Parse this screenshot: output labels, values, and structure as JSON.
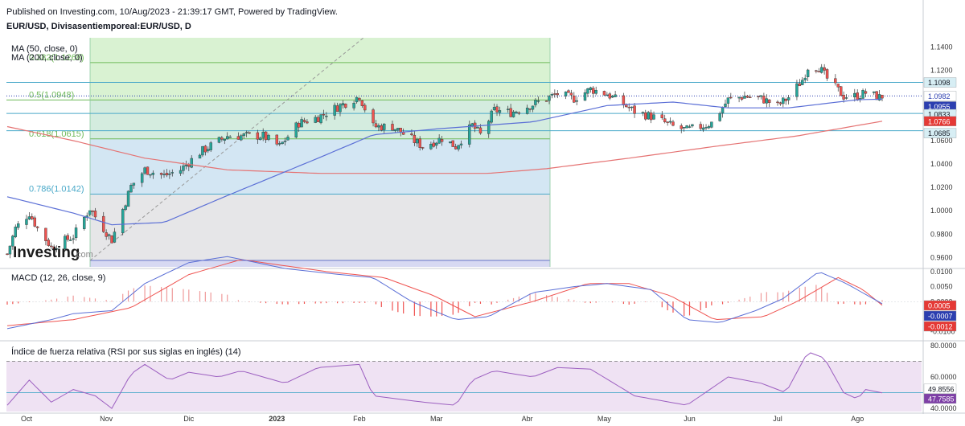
{
  "header": {
    "published": "Published on Investing.com, 10/Aug/2023 - 21:39:17 GMT, Powered by TradingView.",
    "symbol": "EUR/USD, Divisasentiemporeal:EUR/USD, D",
    "ma50_label": "MA (50, close, 0)",
    "ma200_label": "MA (200, close, 0)",
    "watermark": "Investing.com"
  },
  "colors": {
    "up": "#26a69a",
    "down": "#ef5350",
    "ma50": "#5b6fd6",
    "ma200": "#e57373",
    "macd": "#5b6fd6",
    "signal": "#ef5350",
    "rsi": "#9c5fc0",
    "fib_blue": "#4aa9c9",
    "fib_green": "#6fba5a"
  },
  "chart_data": [
    {
      "type": "candlestick",
      "title": "EUR/USD, Divisasentiemporeal:EUR/USD, D",
      "ylim": [
        0.952,
        1.148
      ],
      "yticks": [
        "1.1400",
        "1.1200",
        "1.1000",
        "1.0800",
        "1.0600",
        "1.0400",
        "1.0200",
        "1.0000",
        "0.9800",
        "0.9600"
      ],
      "xticks": [
        "Oct",
        "Nov",
        "Dic",
        "2023",
        "Feb",
        "Mar",
        "Abr",
        "May",
        "Jun",
        "Jul",
        "Ago"
      ],
      "price_anchors": [
        [
          "2022-09-26",
          0.963
        ],
        [
          "2022-09-29",
          0.985
        ],
        [
          "2022-10-04",
          0.998
        ],
        [
          "2022-10-07",
          0.985
        ],
        [
          "2022-10-12",
          0.969
        ],
        [
          "2022-10-20",
          0.978
        ],
        [
          "2022-10-26",
          1.002
        ],
        [
          "2022-10-28",
          0.995
        ],
        [
          "2022-11-03",
          0.975
        ],
        [
          "2022-11-10",
          1.021
        ],
        [
          "2022-11-15",
          1.035
        ],
        [
          "2022-11-22",
          1.03
        ],
        [
          "2022-11-28",
          1.035
        ],
        [
          "2022-12-05",
          1.05
        ],
        [
          "2022-12-15",
          1.064
        ],
        [
          "2022-12-28",
          1.064
        ],
        [
          "2023-01-03",
          1.055
        ],
        [
          "2023-01-10",
          1.075
        ],
        [
          "2023-01-17",
          1.08
        ],
        [
          "2023-01-25",
          1.09
        ],
        [
          "2023-02-01",
          1.098
        ],
        [
          "2023-02-06",
          1.072
        ],
        [
          "2023-02-13",
          1.072
        ],
        [
          "2023-02-24",
          1.055
        ],
        [
          "2023-03-03",
          1.062
        ],
        [
          "2023-03-08",
          1.055
        ],
        [
          "2023-03-14",
          1.073
        ],
        [
          "2023-03-17",
          1.065
        ],
        [
          "2023-03-22",
          1.086
        ],
        [
          "2023-03-28",
          1.084
        ],
        [
          "2023-04-05",
          1.091
        ],
        [
          "2023-04-14",
          1.1
        ],
        [
          "2023-04-20",
          1.096
        ],
        [
          "2023-04-26",
          1.104
        ],
        [
          "2023-05-02",
          1.1
        ],
        [
          "2023-05-12",
          1.085
        ],
        [
          "2023-05-19",
          1.08
        ],
        [
          "2023-05-26",
          1.072
        ],
        [
          "2023-05-31",
          1.069
        ],
        [
          "2023-06-05",
          1.072
        ],
        [
          "2023-06-09",
          1.075
        ],
        [
          "2023-06-15",
          1.095
        ],
        [
          "2023-06-21",
          1.098
        ],
        [
          "2023-06-27",
          1.096
        ],
        [
          "2023-07-03",
          1.09
        ],
        [
          "2023-07-07",
          1.097
        ],
        [
          "2023-07-12",
          1.112
        ],
        [
          "2023-07-14",
          1.123
        ],
        [
          "2023-07-18",
          1.123
        ],
        [
          "2023-07-21",
          1.113
        ],
        [
          "2023-07-27",
          1.098
        ],
        [
          "2023-08-01",
          1.098
        ],
        [
          "2023-08-04",
          1.101
        ],
        [
          "2023-08-09",
          1.097
        ],
        [
          "2023-08-10",
          1.098
        ]
      ],
      "ma50_anchors": [
        [
          "2022-09-26",
          1.012
        ],
        [
          "2022-10-20",
          0.998
        ],
        [
          "2022-11-03",
          0.988
        ],
        [
          "2022-11-22",
          0.99
        ],
        [
          "2022-12-15",
          1.013
        ],
        [
          "2023-01-17",
          1.045
        ],
        [
          "2023-02-06",
          1.065
        ],
        [
          "2023-03-01",
          1.07
        ],
        [
          "2023-04-05",
          1.076
        ],
        [
          "2023-05-02",
          1.09
        ],
        [
          "2023-05-26",
          1.093
        ],
        [
          "2023-06-15",
          1.088
        ],
        [
          "2023-07-07",
          1.088
        ],
        [
          "2023-08-01",
          1.095
        ],
        [
          "2023-08-10",
          1.0955
        ]
      ],
      "ma200_anchors": [
        [
          "2022-09-26",
          1.072
        ],
        [
          "2022-10-20",
          1.06
        ],
        [
          "2022-11-15",
          1.045
        ],
        [
          "2022-12-15",
          1.035
        ],
        [
          "2023-01-17",
          1.032
        ],
        [
          "2023-02-20",
          1.032
        ],
        [
          "2023-03-20",
          1.032
        ],
        [
          "2023-04-10",
          1.036
        ],
        [
          "2023-05-10",
          1.045
        ],
        [
          "2023-06-10",
          1.055
        ],
        [
          "2023-07-10",
          1.064
        ],
        [
          "2023-08-10",
          1.0766
        ]
      ],
      "fibonacci": [
        {
          "label": "0.382(1.1268)",
          "value": 1.1268,
          "color": "#6fba5a"
        },
        {
          "label": "0.5(1.0948)",
          "value": 1.0948,
          "color": "#6fba5a"
        },
        {
          "label": "0.618(1.0615)",
          "value": 1.0615,
          "color": "#6fba5a"
        },
        {
          "label": "0.786(1.0142)",
          "value": 1.0142,
          "color": "#4aa9c9"
        },
        {
          "label": "",
          "value": 0.9575,
          "color": "#6674c9"
        }
      ],
      "horizontal_lines": [
        1.1098,
        1.0833,
        1.0685
      ],
      "price_tags": [
        {
          "text": "1.1098",
          "bg": "#d7eef4",
          "fg": "#131722"
        },
        {
          "text": "1.0982",
          "bg": "#ffffff",
          "fg": "#2c3fb0"
        },
        {
          "text": "1.0955",
          "bg": "#2c3fb0",
          "fg": "#ffffff"
        },
        {
          "text": "1.0833",
          "bg": "#d7eef4",
          "fg": "#131722"
        },
        {
          "text": "1.0766",
          "bg": "#e53935",
          "fg": "#ffffff"
        },
        {
          "text": "1.0685",
          "bg": "#d7eef4",
          "fg": "#131722"
        }
      ]
    },
    {
      "type": "line",
      "title": "MACD (12, 26, close, 9)",
      "ylim": [
        -0.0125,
        0.0105
      ],
      "yticks": [
        "0.0100",
        "0.0050",
        "0.0000",
        "-0.0050",
        "-0.0100"
      ],
      "macd_anchors": [
        [
          "2022-09-26",
          -0.009
        ],
        [
          "2022-10-12",
          -0.006
        ],
        [
          "2022-10-20",
          -0.004
        ],
        [
          "2022-11-03",
          -0.003
        ],
        [
          "2022-11-15",
          0.006
        ],
        [
          "2022-12-01",
          0.013
        ],
        [
          "2022-12-15",
          0.015
        ],
        [
          "2023-01-05",
          0.011
        ],
        [
          "2023-01-25",
          0.009
        ],
        [
          "2023-02-06",
          0.008
        ],
        [
          "2023-02-20",
          0.0
        ],
        [
          "2023-03-08",
          -0.006
        ],
        [
          "2023-03-20",
          -0.005
        ],
        [
          "2023-04-05",
          0.003
        ],
        [
          "2023-04-20",
          0.005
        ],
        [
          "2023-05-02",
          0.006
        ],
        [
          "2023-05-18",
          0.004
        ],
        [
          "2023-05-31",
          -0.006
        ],
        [
          "2023-06-12",
          -0.007
        ],
        [
          "2023-06-25",
          -0.003
        ],
        [
          "2023-07-05",
          0.001
        ],
        [
          "2023-07-18",
          0.01
        ],
        [
          "2023-07-28",
          0.006
        ],
        [
          "2023-08-10",
          -0.0007
        ]
      ],
      "signal_anchors": [
        [
          "2022-09-26",
          -0.008
        ],
        [
          "2022-10-20",
          -0.006
        ],
        [
          "2022-11-10",
          -0.002
        ],
        [
          "2022-12-01",
          0.009
        ],
        [
          "2022-12-20",
          0.014
        ],
        [
          "2023-01-20",
          0.01
        ],
        [
          "2023-02-10",
          0.008
        ],
        [
          "2023-02-28",
          0.002
        ],
        [
          "2023-03-15",
          -0.005
        ],
        [
          "2023-04-05",
          0.0
        ],
        [
          "2023-04-25",
          0.006
        ],
        [
          "2023-05-10",
          0.006
        ],
        [
          "2023-05-25",
          0.002
        ],
        [
          "2023-06-10",
          -0.006
        ],
        [
          "2023-06-28",
          -0.005
        ],
        [
          "2023-07-10",
          0.0
        ],
        [
          "2023-07-25",
          0.008
        ],
        [
          "2023-08-03",
          0.004
        ],
        [
          "2023-08-10",
          -0.0012
        ]
      ],
      "price_tags": [
        {
          "text": "0.0005",
          "bg": "#e53935",
          "fg": "#ffffff"
        },
        {
          "text": "-0.0007",
          "bg": "#2c3fb0",
          "fg": "#ffffff"
        },
        {
          "text": "-0.0012",
          "bg": "#e53935",
          "fg": "#ffffff"
        }
      ]
    },
    {
      "type": "line",
      "title": "Índice de fuerza relativa (RSI por sus siglas en inglés) (14)",
      "ylim": [
        38,
        82
      ],
      "yticks": [
        "80.0000",
        "60.0000",
        "40.0000"
      ],
      "band": [
        30,
        70
      ],
      "rsi_anchors": [
        [
          "2022-09-26",
          42
        ],
        [
          "2022-10-04",
          58
        ],
        [
          "2022-10-12",
          44
        ],
        [
          "2022-10-20",
          52
        ],
        [
          "2022-10-28",
          48
        ],
        [
          "2022-11-03",
          40
        ],
        [
          "2022-11-10",
          62
        ],
        [
          "2022-11-15",
          68
        ],
        [
          "2022-11-24",
          58
        ],
        [
          "2022-12-01",
          63
        ],
        [
          "2022-12-12",
          60
        ],
        [
          "2022-12-20",
          64
        ],
        [
          "2023-01-05",
          56
        ],
        [
          "2023-01-17",
          66
        ],
        [
          "2023-02-01",
          68
        ],
        [
          "2023-02-06",
          48
        ],
        [
          "2023-02-24",
          44
        ],
        [
          "2023-03-08",
          42
        ],
        [
          "2023-03-14",
          58
        ],
        [
          "2023-03-22",
          64
        ],
        [
          "2023-04-05",
          60
        ],
        [
          "2023-04-14",
          66
        ],
        [
          "2023-04-26",
          65
        ],
        [
          "2023-05-12",
          48
        ],
        [
          "2023-05-31",
          42
        ],
        [
          "2023-06-15",
          60
        ],
        [
          "2023-06-27",
          56
        ],
        [
          "2023-07-06",
          50
        ],
        [
          "2023-07-14",
          76
        ],
        [
          "2023-07-20",
          72
        ],
        [
          "2023-07-27",
          50
        ],
        [
          "2023-08-01",
          46
        ],
        [
          "2023-08-04",
          52
        ],
        [
          "2023-08-10",
          49.86
        ]
      ],
      "price_tags": [
        {
          "text": "49.8556",
          "bg": "#ffffff",
          "fg": "#131722"
        },
        {
          "text": "47.7585",
          "bg": "#7e3fa6",
          "fg": "#ffffff"
        }
      ]
    }
  ]
}
